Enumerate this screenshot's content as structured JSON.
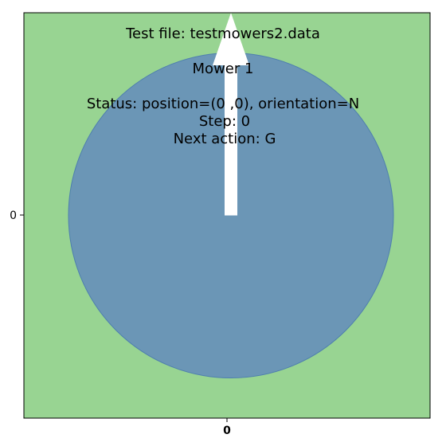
{
  "chart_data": {
    "type": "scatter",
    "title": "",
    "xlabel": "",
    "ylabel": "",
    "xlim": [
      -0.5,
      0.5
    ],
    "ylim": [
      -0.5,
      0.5
    ],
    "grid": false,
    "colors": {
      "lawn": "#98d492",
      "mower": "#6b96b6",
      "mower_edge": "#4e7fae",
      "arrow": "#ffffff"
    },
    "x_ticks": [
      "0"
    ],
    "y_ticks": [
      "0"
    ],
    "mowers": [
      {
        "x": 0,
        "y": 0,
        "orientation": "N",
        "radius": 0.4
      }
    ],
    "annotations": {
      "test_file": "Test file: testmowers2.data",
      "mower_name": "Mower 1",
      "status": "Status: position=(0 ,0), orientation=N",
      "step": "Step: 0",
      "next_action": "Next action: G"
    }
  }
}
